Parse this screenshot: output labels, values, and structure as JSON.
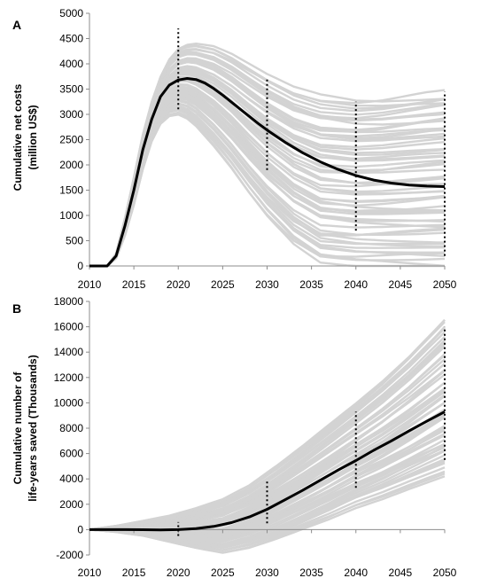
{
  "chart_data": [
    {
      "panel_label": "A",
      "type": "line",
      "ylabel_lines": [
        "Cumulative net costs",
        "(million US$)"
      ],
      "xlim": [
        2010,
        2050
      ],
      "ylim": [
        0,
        5000
      ],
      "x_ticks": [
        2010,
        2015,
        2020,
        2025,
        2030,
        2035,
        2040,
        2045,
        2050
      ],
      "y_ticks": [
        0,
        500,
        1000,
        1500,
        2000,
        2500,
        3000,
        3500,
        4000,
        4500,
        5000
      ],
      "grid": false,
      "colors": {
        "simulations": "#d3d3d3",
        "central": "#000000",
        "ranges": "#000000"
      },
      "central_series": {
        "x": [
          2010,
          2012,
          2013,
          2014,
          2015,
          2016,
          2017,
          2018,
          2019,
          2020,
          2021,
          2022,
          2023,
          2024,
          2025,
          2026,
          2027,
          2028,
          2029,
          2030,
          2032,
          2034,
          2036,
          2038,
          2040,
          2042,
          2044,
          2046,
          2048,
          2050
        ],
        "y": [
          0,
          0,
          200,
          800,
          1500,
          2300,
          2900,
          3350,
          3580,
          3680,
          3710,
          3690,
          3620,
          3510,
          3380,
          3240,
          3100,
          2960,
          2820,
          2690,
          2450,
          2240,
          2060,
          1910,
          1790,
          1700,
          1640,
          1600,
          1580,
          1570
        ]
      },
      "simulation_envelope": {
        "x": [
          2010,
          2012,
          2013,
          2014,
          2015,
          2016,
          2017,
          2018,
          2019,
          2020,
          2021,
          2022,
          2024,
          2026,
          2028,
          2030,
          2033,
          2036,
          2040,
          2043,
          2046,
          2050
        ],
        "lower": [
          0,
          0,
          150,
          600,
          1200,
          1900,
          2450,
          2800,
          2950,
          2980,
          2900,
          2750,
          2350,
          1900,
          1400,
          950,
          400,
          50,
          0,
          0,
          0,
          0
        ],
        "upper": [
          0,
          0,
          250,
          950,
          1750,
          2600,
          3250,
          3750,
          4100,
          4300,
          4380,
          4400,
          4350,
          4200,
          4000,
          3800,
          3550,
          3400,
          3320,
          3340,
          3400,
          3480
        ]
      },
      "ranges": [
        {
          "x": 2020,
          "low": 3100,
          "high": 4700
        },
        {
          "x": 2030,
          "low": 1900,
          "high": 3700
        },
        {
          "x": 2040,
          "low": 700,
          "high": 3250
        },
        {
          "x": 2050,
          "low": 200,
          "high": 3450
        }
      ]
    },
    {
      "panel_label": "B",
      "type": "line",
      "ylabel_lines": [
        "Cumulative number of",
        "life-years saved  (Thousands)"
      ],
      "xlim": [
        2010,
        2050
      ],
      "ylim": [
        -2000,
        18000
      ],
      "x_ticks": [
        2010,
        2015,
        2020,
        2025,
        2030,
        2035,
        2040,
        2045,
        2050
      ],
      "y_ticks": [
        -2000,
        0,
        2000,
        4000,
        6000,
        8000,
        10000,
        12000,
        14000,
        16000,
        18000
      ],
      "grid": false,
      "colors": {
        "simulations": "#d3d3d3",
        "central": "#000000",
        "ranges": "#000000"
      },
      "central_series": {
        "x": [
          2010,
          2012,
          2014,
          2016,
          2018,
          2020,
          2022,
          2024,
          2026,
          2028,
          2030,
          2032,
          2034,
          2036,
          2038,
          2040,
          2042,
          2044,
          2046,
          2048,
          2050
        ],
        "y": [
          0,
          0,
          0,
          -10,
          -30,
          0,
          80,
          250,
          550,
          1000,
          1600,
          2350,
          3100,
          3900,
          4700,
          5450,
          6250,
          7000,
          7800,
          8550,
          9300
        ]
      },
      "simulation_envelope": {
        "x": [
          2010,
          2013,
          2016,
          2019,
          2022,
          2025,
          2028,
          2031,
          2034,
          2037,
          2040,
          2043,
          2046,
          2050
        ],
        "lower": [
          0,
          -200,
          -500,
          -1000,
          -1500,
          -1900,
          -1500,
          -800,
          0,
          800,
          1700,
          2400,
          3200,
          4200
        ],
        "upper": [
          0,
          300,
          700,
          1100,
          1700,
          2400,
          3500,
          5000,
          6600,
          8300,
          10000,
          11800,
          13800,
          16800
        ]
      },
      "ranges": [
        {
          "x": 2020,
          "low": -500,
          "high": 600
        },
        {
          "x": 2030,
          "low": 500,
          "high": 4000
        },
        {
          "x": 2040,
          "low": 3300,
          "high": 9300
        },
        {
          "x": 2050,
          "low": 5500,
          "high": 16000
        }
      ]
    }
  ]
}
